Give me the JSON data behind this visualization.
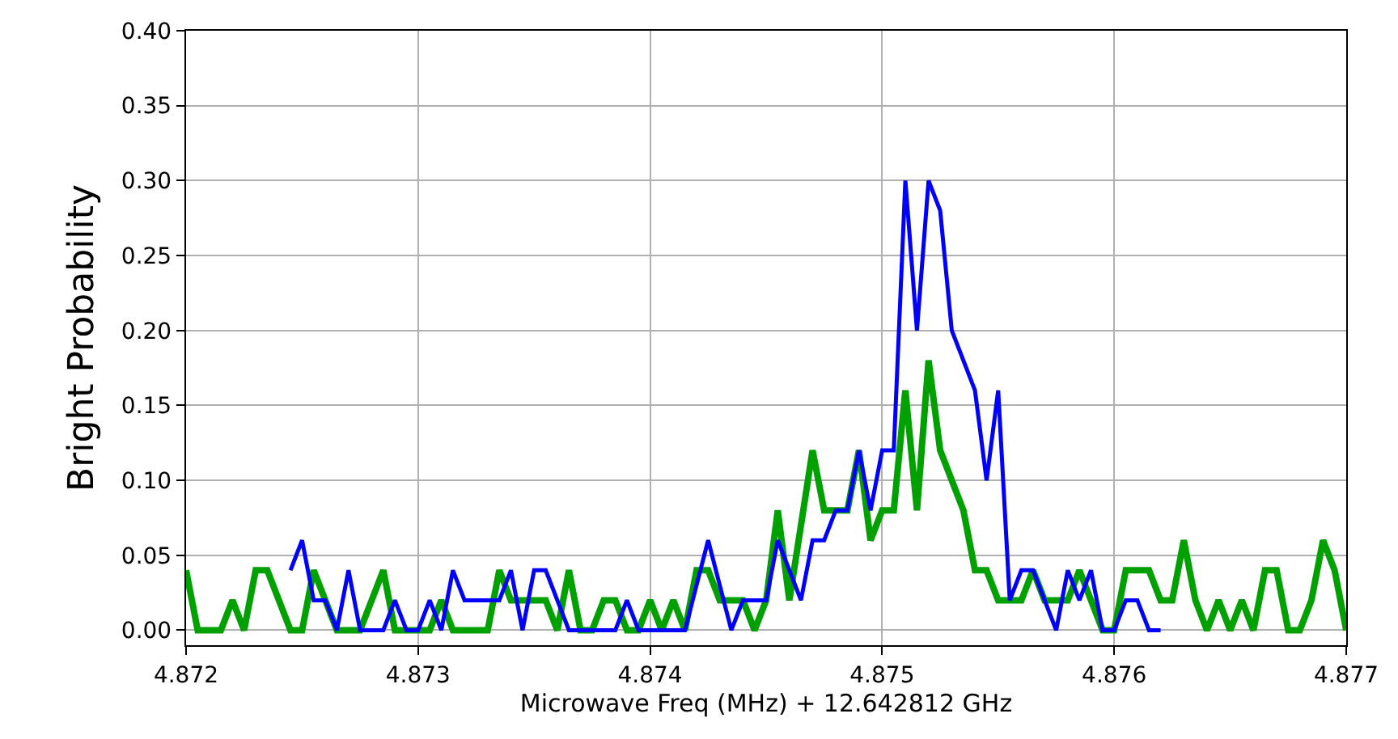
{
  "chart_data": {
    "type": "line",
    "xlabel": "Microwave Freq (MHz) + 12.642812 GHz",
    "ylabel": "Bright Probability",
    "xlim": [
      4.872,
      4.877
    ],
    "ylim": [
      -0.01,
      0.4
    ],
    "xticks": [
      4.872,
      4.873,
      4.874,
      4.875,
      4.876,
      4.877
    ],
    "yticks": [
      {
        "value": 0,
        "label": "0.00"
      },
      {
        "value": 0.05,
        "label": "0.05"
      },
      {
        "value": 0.1,
        "label": "0.10"
      },
      {
        "value": 0.15,
        "label": "0.15"
      },
      {
        "value": 0.2,
        "label": "0.20"
      },
      {
        "value": 0.25,
        "label": "0.25"
      },
      {
        "value": 0.3,
        "label": "0.30"
      },
      {
        "value": 0.35,
        "label": "0.35"
      },
      {
        "value": 0.4,
        "label": "0.40"
      }
    ],
    "grid": true,
    "marker": "none",
    "line_style": "solid",
    "series": [
      {
        "color": "#00a000",
        "x": [
          4.872,
          4.87205,
          4.87215,
          4.8722,
          4.87225,
          4.8723,
          4.87235,
          4.87245,
          4.8725,
          4.87255,
          4.8726,
          4.87265,
          4.87275,
          4.87285,
          4.8729,
          4.87305,
          4.8731,
          4.87315,
          4.8733,
          4.87335,
          4.8734,
          4.87355,
          4.8736,
          4.87365,
          4.8737,
          4.87375,
          4.8738,
          4.87385,
          4.8739,
          4.87395,
          4.874,
          4.87405,
          4.8741,
          4.87415,
          4.8742,
          4.87425,
          4.8743,
          4.8744,
          4.87445,
          4.8745,
          4.87455,
          4.8746,
          4.8747,
          4.87475,
          4.87485,
          4.8749,
          4.87495,
          4.875,
          4.87505,
          4.8751,
          4.87515,
          4.8752,
          4.87525,
          4.87535,
          4.8754,
          4.87545,
          4.8755,
          4.8756,
          4.87565,
          4.8757,
          4.8758,
          4.87585,
          4.8759,
          4.87595,
          4.876,
          4.87605,
          4.87615,
          4.8762,
          4.87625,
          4.8763,
          4.87635,
          4.8764,
          4.87645,
          4.8765,
          4.87655,
          4.8766,
          4.87665,
          4.8767,
          4.87675,
          4.8768,
          4.87685,
          4.8769,
          4.87695,
          4.877
        ],
        "values": [
          0.04,
          0,
          0,
          0.02,
          0,
          0.04,
          0.04,
          0,
          0,
          0.04,
          0.02,
          0,
          0,
          0.04,
          0,
          0,
          0.02,
          0,
          0,
          0.04,
          0.02,
          0.02,
          0,
          0.04,
          0,
          0,
          0.02,
          0.02,
          0,
          0,
          0.02,
          0,
          0.02,
          0,
          0.04,
          0.04,
          0.02,
          0.02,
          0,
          0.02,
          0.08,
          0.02,
          0.12,
          0.08,
          0.08,
          0.12,
          0.06,
          0.08,
          0.08,
          0.16,
          0.08,
          0.18,
          0.12,
          0.08,
          0.04,
          0.04,
          0.02,
          0.02,
          0.04,
          0.02,
          0.02,
          0.04,
          0.02,
          0,
          0,
          0.04,
          0.04,
          0.02,
          0.02,
          0.06,
          0.02,
          0,
          0.02,
          0,
          0.02,
          0,
          0.04,
          0.04,
          0,
          0,
          0.02,
          0.06,
          0.04,
          0
        ]
      },
      {
        "color": "#0000ff",
        "x": [
          4.87245,
          4.8725,
          4.87255,
          4.8726,
          4.87265,
          4.8727,
          4.87275,
          4.87285,
          4.8729,
          4.87295,
          4.873,
          4.87305,
          4.8731,
          4.87315,
          4.8732,
          4.87335,
          4.8734,
          4.87345,
          4.8735,
          4.87355,
          4.87365,
          4.87385,
          4.8739,
          4.87395,
          4.87415,
          4.87425,
          4.87435,
          4.8744,
          4.8745,
          4.87455,
          4.87465,
          4.8747,
          4.87475,
          4.8748,
          4.87485,
          4.8749,
          4.87495,
          4.875,
          4.87505,
          4.8751,
          4.87515,
          4.8752,
          4.87525,
          4.8753,
          4.8754,
          4.87545,
          4.8755,
          4.87555,
          4.8756,
          4.87565,
          4.8757,
          4.87575,
          4.8758,
          4.87585,
          4.8759,
          4.87595,
          4.876,
          4.87605,
          4.8761,
          4.87615,
          4.8762
        ],
        "values": [
          0.04,
          0.06,
          0.02,
          0.02,
          0,
          0.04,
          0,
          0,
          0.02,
          0,
          0,
          0.02,
          0,
          0.04,
          0.02,
          0.02,
          0.04,
          0,
          0.04,
          0.04,
          0,
          0,
          0.02,
          0,
          0,
          0.06,
          0,
          0.02,
          0.02,
          0.06,
          0.02,
          0.06,
          0.06,
          0.08,
          0.08,
          0.12,
          0.08,
          0.12,
          0.12,
          0.3,
          0.2,
          0.3,
          0.28,
          0.2,
          0.16,
          0.1,
          0.16,
          0.02,
          0.04,
          0.04,
          0.02,
          0,
          0.04,
          0.02,
          0.04,
          0,
          0,
          0.02,
          0.02,
          0,
          0
        ]
      }
    ]
  }
}
